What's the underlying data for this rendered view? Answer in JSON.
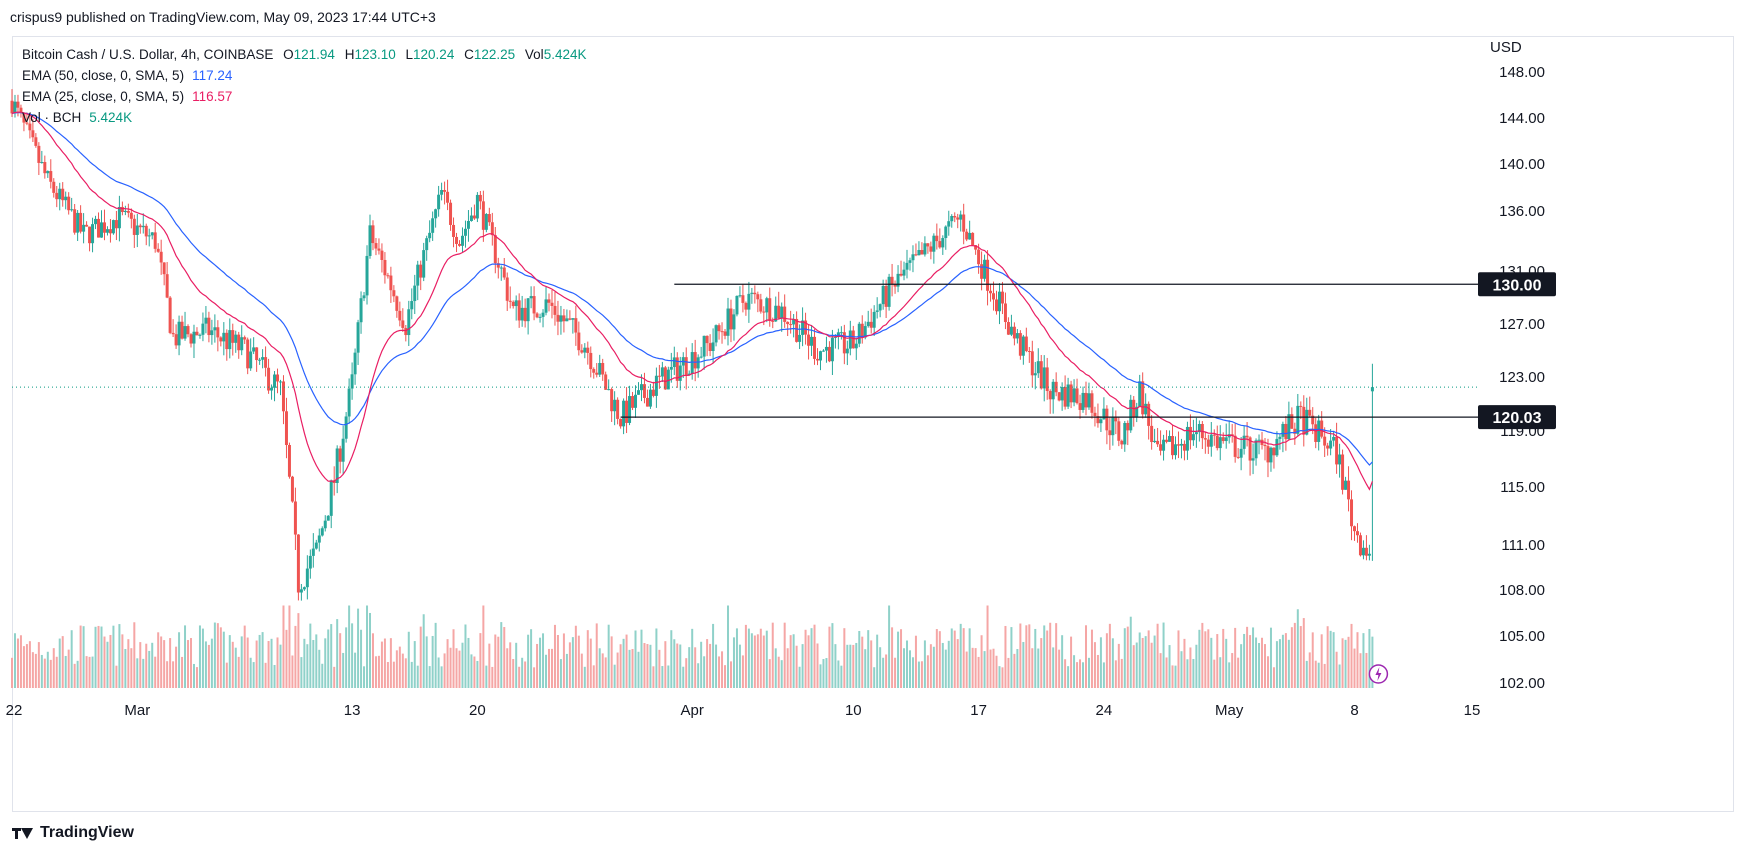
{
  "header": {
    "published_by": "crispus9 published on TradingView.com, May 09, 2023 17:44 UTC+3"
  },
  "legend": {
    "symbol": "Bitcoin Cash / U.S. Dollar, 4h, COINBASE",
    "ohlc": {
      "o_label": "O",
      "o": "121.94",
      "h_label": "H",
      "h": "123.10",
      "l_label": "L",
      "l": "120.24",
      "c_label": "C",
      "c": "122.25",
      "vol_label": "Vol",
      "vol": "5.424K"
    },
    "ema50": {
      "label": "EMA (50, close, 0, SMA, 5)",
      "value": "117.24"
    },
    "ema25": {
      "label": "EMA (25, close, 0, SMA, 5)",
      "value": "116.57"
    },
    "volume": {
      "label": "Vol · BCH",
      "value": "5.424K"
    }
  },
  "footer": {
    "brand": "TradingView"
  },
  "colors": {
    "up": "#26a69a",
    "down": "#ef5350",
    "ema50": "#2962ff",
    "ema25": "#e91e63",
    "vol_up": "#8fd1c9",
    "vol_down": "#f5a6a5",
    "level": "#131722",
    "last_price": "#089981"
  },
  "chart_data": {
    "type": "candlestick",
    "currency": "USD",
    "y_ticks": [
      "148.00",
      "144.00",
      "140.00",
      "136.00",
      "131.00",
      "127.00",
      "123.00",
      "119.00",
      "115.00",
      "111.00",
      "108.00",
      "105.00",
      "102.00"
    ],
    "x_ticks": [
      "22",
      "Mar",
      "13",
      "20",
      "Apr",
      "10",
      "17",
      "24",
      "May",
      "8",
      "15"
    ],
    "levels": [
      {
        "label": "130.00",
        "value": 130.0
      },
      {
        "label": "120.03",
        "value": 120.03
      }
    ],
    "last_price": 122.25,
    "ema50_last": 117.24,
    "ema25_last": 116.57,
    "close_path": [
      {
        "date": "2023-02-22",
        "close": 145.5
      },
      {
        "date": "2023-02-24",
        "close": 138.5
      },
      {
        "date": "2023-02-26",
        "close": 134.0
      },
      {
        "date": "2023-02-28",
        "close": 135.5
      },
      {
        "date": "2023-03-02",
        "close": 133.5
      },
      {
        "date": "2023-03-03",
        "close": 126.0
      },
      {
        "date": "2023-03-05",
        "close": 126.5
      },
      {
        "date": "2023-03-07",
        "close": 125.0
      },
      {
        "date": "2023-03-09",
        "close": 122.0
      },
      {
        "date": "2023-03-10",
        "close": 108.5
      },
      {
        "date": "2023-03-11",
        "close": 110.5
      },
      {
        "date": "2023-03-12",
        "close": 115.5
      },
      {
        "date": "2023-03-13",
        "close": 122.5
      },
      {
        "date": "2023-03-14",
        "close": 134.0
      },
      {
        "date": "2023-03-16",
        "close": 127.0
      },
      {
        "date": "2023-03-18",
        "close": 137.5
      },
      {
        "date": "2023-03-19",
        "close": 133.5
      },
      {
        "date": "2023-03-20",
        "close": 137.0
      },
      {
        "date": "2023-03-22",
        "close": 128.0
      },
      {
        "date": "2023-03-24",
        "close": 128.5
      },
      {
        "date": "2023-03-26",
        "close": 125.5
      },
      {
        "date": "2023-03-28",
        "close": 120.0
      },
      {
        "date": "2023-03-30",
        "close": 122.5
      },
      {
        "date": "2023-04-02",
        "close": 125.5
      },
      {
        "date": "2023-04-04",
        "close": 129.0
      },
      {
        "date": "2023-04-06",
        "close": 128.0
      },
      {
        "date": "2023-04-08",
        "close": 125.0
      },
      {
        "date": "2023-04-10",
        "close": 125.5
      },
      {
        "date": "2023-04-12",
        "close": 129.5
      },
      {
        "date": "2023-04-14",
        "close": 132.5
      },
      {
        "date": "2023-04-16",
        "close": 135.5
      },
      {
        "date": "2023-04-17",
        "close": 132.0
      },
      {
        "date": "2023-04-19",
        "close": 126.0
      },
      {
        "date": "2023-04-21",
        "close": 122.0
      },
      {
        "date": "2023-04-23",
        "close": 121.5
      },
      {
        "date": "2023-04-25",
        "close": 118.5
      },
      {
        "date": "2023-04-26",
        "close": 122.0
      },
      {
        "date": "2023-04-27",
        "close": 117.0
      },
      {
        "date": "2023-04-29",
        "close": 119.0
      },
      {
        "date": "2023-05-01",
        "close": 118.0
      },
      {
        "date": "2023-05-03",
        "close": 117.5
      },
      {
        "date": "2023-05-05",
        "close": 120.0
      },
      {
        "date": "2023-05-07",
        "close": 117.5
      },
      {
        "date": "2023-05-08",
        "close": 112.0
      },
      {
        "date": "2023-05-08T20:00",
        "close": 110.5
      },
      {
        "date": "2023-05-09",
        "close": 122.25
      }
    ]
  }
}
